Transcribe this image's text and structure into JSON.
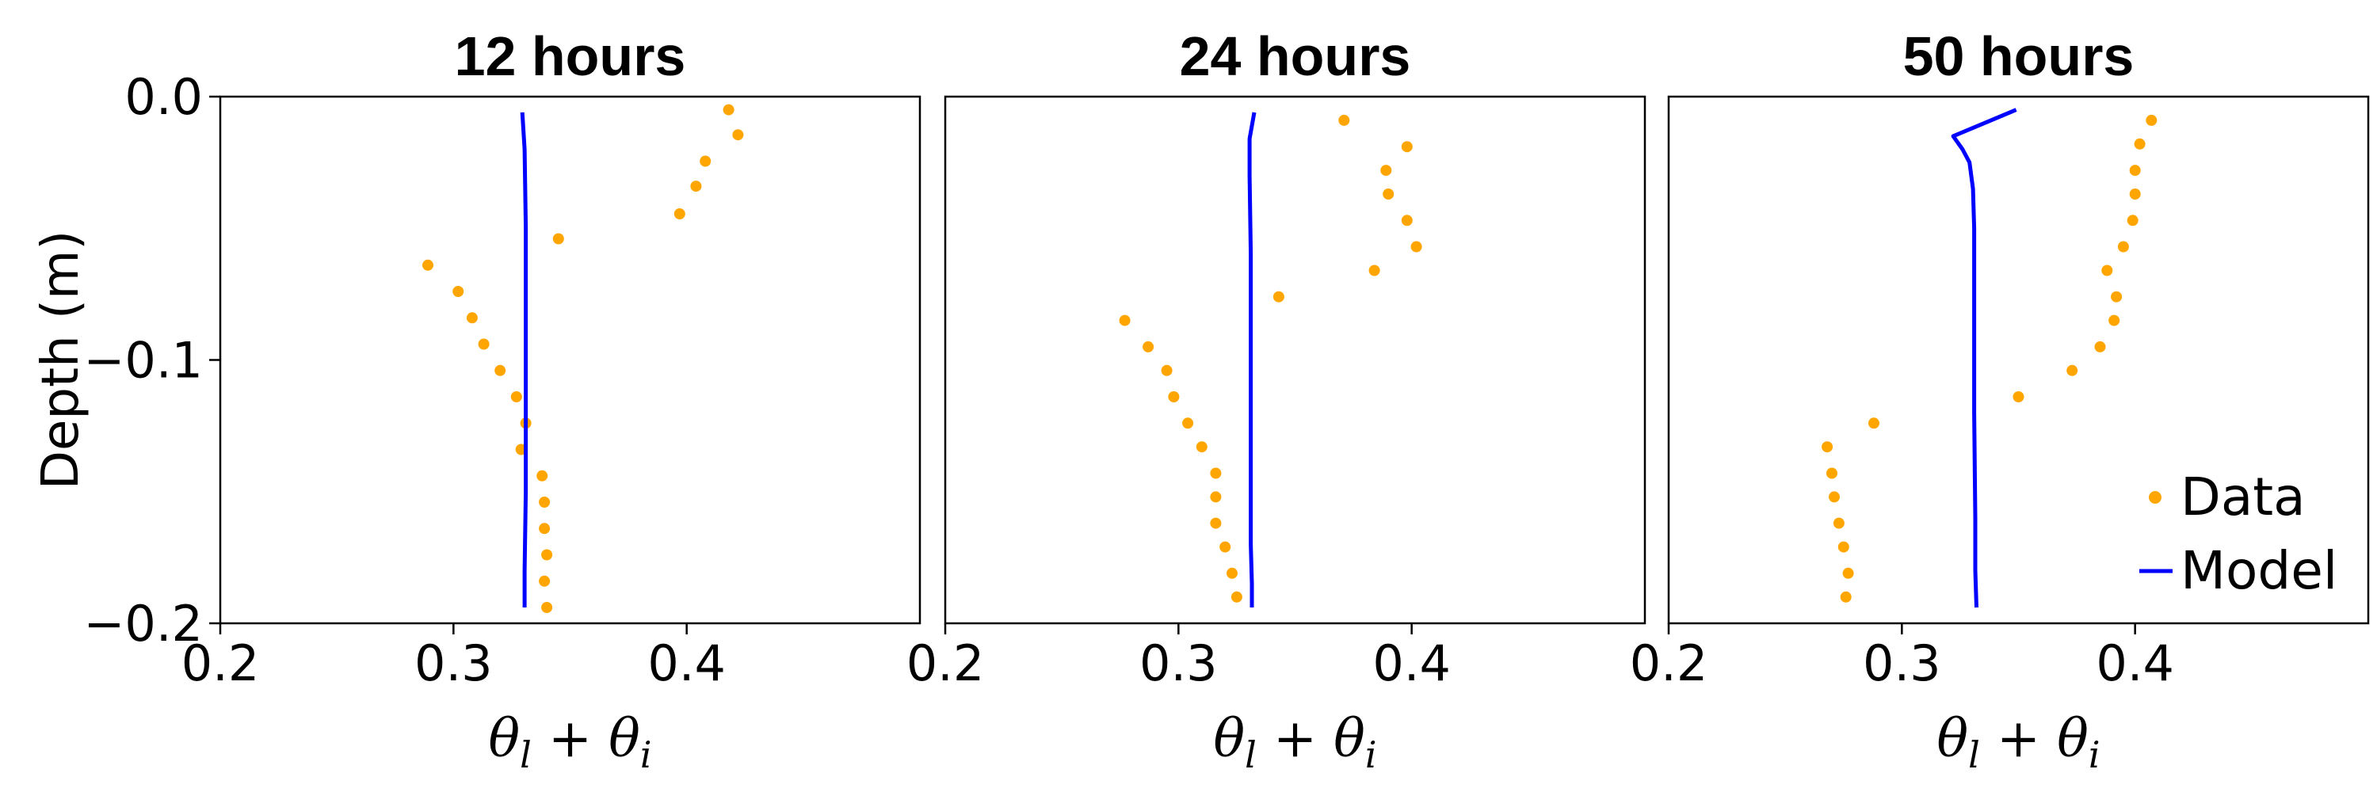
{
  "chart_data": [
    {
      "type": "scatter",
      "title": "12 hours",
      "xlabel": "θl + θi",
      "ylabel": "Depth (m)",
      "xlim": [
        0.2,
        0.5
      ],
      "ylim": [
        -0.2,
        0.0
      ],
      "xticks": [
        "0.2",
        "0.3",
        "0.4"
      ],
      "yticks": [
        "0.0",
        "−0.1",
        "−0.2"
      ],
      "series": [
        {
          "name": "Data",
          "kind": "scatter",
          "color": "#FFA500",
          "x": [
            0.418,
            0.422,
            0.408,
            0.404,
            0.397,
            0.345,
            0.289,
            0.302,
            0.308,
            0.313,
            0.32,
            0.327,
            0.331,
            0.329,
            0.338,
            0.339,
            0.339,
            0.34,
            0.339,
            0.34
          ],
          "y": [
            -0.005,
            -0.0145,
            -0.0245,
            -0.034,
            -0.0445,
            -0.054,
            -0.064,
            -0.074,
            -0.084,
            -0.094,
            -0.104,
            -0.114,
            -0.124,
            -0.134,
            -0.144,
            -0.154,
            -0.164,
            -0.174,
            -0.184,
            -0.194
          ]
        },
        {
          "name": "Model",
          "kind": "line",
          "color": "#0000FF",
          "x": [
            0.3295,
            0.3305,
            0.331,
            0.331,
            0.331,
            0.3305,
            0.3305
          ],
          "y": [
            -0.006,
            -0.02,
            -0.05,
            -0.1,
            -0.15,
            -0.18,
            -0.194
          ]
        }
      ]
    },
    {
      "type": "scatter",
      "title": "24 hours",
      "xlabel": "θl + θi",
      "ylabel": "",
      "xlim": [
        0.2,
        0.5
      ],
      "ylim": [
        -0.2,
        0.0
      ],
      "xticks": [
        "0.2",
        "0.3",
        "0.4"
      ],
      "yticks": [],
      "series": [
        {
          "name": "Data",
          "kind": "scatter",
          "color": "#FFA500",
          "x": [
            0.371,
            0.398,
            0.389,
            0.39,
            0.398,
            0.402,
            0.384,
            0.343,
            0.277,
            0.287,
            0.295,
            0.298,
            0.304,
            0.31,
            0.316,
            0.316,
            0.316,
            0.32,
            0.323,
            0.325
          ],
          "y": [
            -0.009,
            -0.019,
            -0.028,
            -0.037,
            -0.047,
            -0.057,
            -0.066,
            -0.076,
            -0.085,
            -0.095,
            -0.104,
            -0.114,
            -0.124,
            -0.133,
            -0.143,
            -0.152,
            -0.162,
            -0.171,
            -0.181,
            -0.19
          ]
        },
        {
          "name": "Model",
          "kind": "line",
          "color": "#0000FF",
          "x": [
            0.3325,
            0.3305,
            0.3305,
            0.331,
            0.331,
            0.331,
            0.331,
            0.3315,
            0.3315
          ],
          "y": [
            -0.006,
            -0.016,
            -0.03,
            -0.06,
            -0.1,
            -0.14,
            -0.17,
            -0.185,
            -0.194
          ]
        }
      ]
    },
    {
      "type": "scatter",
      "title": "50 hours",
      "xlabel": "θl + θi",
      "ylabel": "",
      "xlim": [
        0.2,
        0.5
      ],
      "ylim": [
        -0.2,
        0.0
      ],
      "xticks": [
        "0.2",
        "0.3",
        "0.4"
      ],
      "yticks": [],
      "legend": {
        "position": "bottom-right",
        "entries": [
          "Data",
          "Model"
        ]
      },
      "series": [
        {
          "name": "Data",
          "kind": "scatter",
          "color": "#FFA500",
          "x": [
            0.407,
            0.402,
            0.4,
            0.4,
            0.399,
            0.395,
            0.388,
            0.392,
            0.391,
            0.385,
            0.373,
            0.35,
            0.288,
            0.268,
            0.27,
            0.271,
            0.273,
            0.275,
            0.277,
            0.276
          ],
          "y": [
            -0.009,
            -0.018,
            -0.028,
            -0.037,
            -0.047,
            -0.057,
            -0.066,
            -0.076,
            -0.085,
            -0.095,
            -0.104,
            -0.114,
            -0.124,
            -0.133,
            -0.143,
            -0.152,
            -0.162,
            -0.171,
            -0.181,
            -0.19
          ]
        },
        {
          "name": "Model",
          "kind": "line",
          "color": "#0000FF",
          "x": [
            0.349,
            0.322,
            0.326,
            0.329,
            0.3305,
            0.331,
            0.331,
            0.331,
            0.3315,
            0.3315,
            0.332
          ],
          "y": [
            -0.005,
            -0.015,
            -0.02,
            -0.025,
            -0.035,
            -0.05,
            -0.08,
            -0.12,
            -0.16,
            -0.18,
            -0.194
          ]
        }
      ]
    }
  ]
}
